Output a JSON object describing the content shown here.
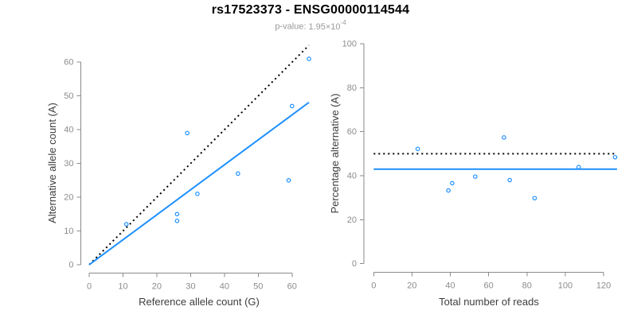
{
  "title": "rs17523373 - ENSG00000114544",
  "subtitle": {
    "prefix": "p-value:",
    "base": "1.95×10",
    "exponent": "-4"
  },
  "colors": {
    "accent_blue": "#1E90FF",
    "dotted_line_black": "#000000",
    "axis_gray": "#8a8a8a",
    "tick_label_gray": "#8c8c8c",
    "axis_title_dark": "#3d3d3d",
    "title_black": "#000000",
    "subtitle_gray": "#9a9a9a"
  },
  "chart_data": [
    {
      "type": "scatter",
      "panel": "left",
      "xlabel": "Reference allele count (G)",
      "ylabel": "Alternative allele count (A)",
      "xlim": [
        0,
        65
      ],
      "ylim": [
        0,
        65
      ],
      "xticks": [
        0,
        10,
        20,
        30,
        40,
        50,
        60
      ],
      "yticks": [
        0,
        10,
        20,
        30,
        40,
        50,
        60
      ],
      "grid": false,
      "legend": "none",
      "points": [
        [
          11,
          12
        ],
        [
          26,
          13
        ],
        [
          26,
          15
        ],
        [
          29,
          39
        ],
        [
          32,
          21
        ],
        [
          44,
          27
        ],
        [
          59,
          25
        ],
        [
          60,
          47
        ],
        [
          65,
          61
        ]
      ],
      "lines": [
        {
          "name": "identity-line",
          "style": "dotted",
          "color": "#000000",
          "slope": 1,
          "intercept": 0
        },
        {
          "name": "fit-line",
          "style": "solid",
          "color": "#1E90FF",
          "slope": 0.74,
          "intercept": 0
        }
      ]
    },
    {
      "type": "scatter",
      "panel": "right",
      "xlabel": "Total number of reads",
      "ylabel": "Percentage alternative (A)",
      "xlim": [
        0,
        127
      ],
      "ylim": [
        0,
        100
      ],
      "xticks": [
        0,
        20,
        40,
        60,
        80,
        100,
        120
      ],
      "yticks": [
        0,
        20,
        40,
        60,
        80,
        100
      ],
      "grid": false,
      "legend": "none",
      "points": [
        [
          23,
          52.2
        ],
        [
          39,
          33.3
        ],
        [
          41,
          36.6
        ],
        [
          53,
          39.6
        ],
        [
          68,
          57.4
        ],
        [
          71,
          38.0
        ],
        [
          84,
          29.8
        ],
        [
          107,
          43.9
        ],
        [
          126,
          48.4
        ]
      ],
      "lines": [
        {
          "name": "expected-50-line",
          "style": "dotted",
          "color": "#000000",
          "y": 50
        },
        {
          "name": "fit-line",
          "style": "solid",
          "color": "#1E90FF",
          "y": 43
        }
      ]
    }
  ]
}
